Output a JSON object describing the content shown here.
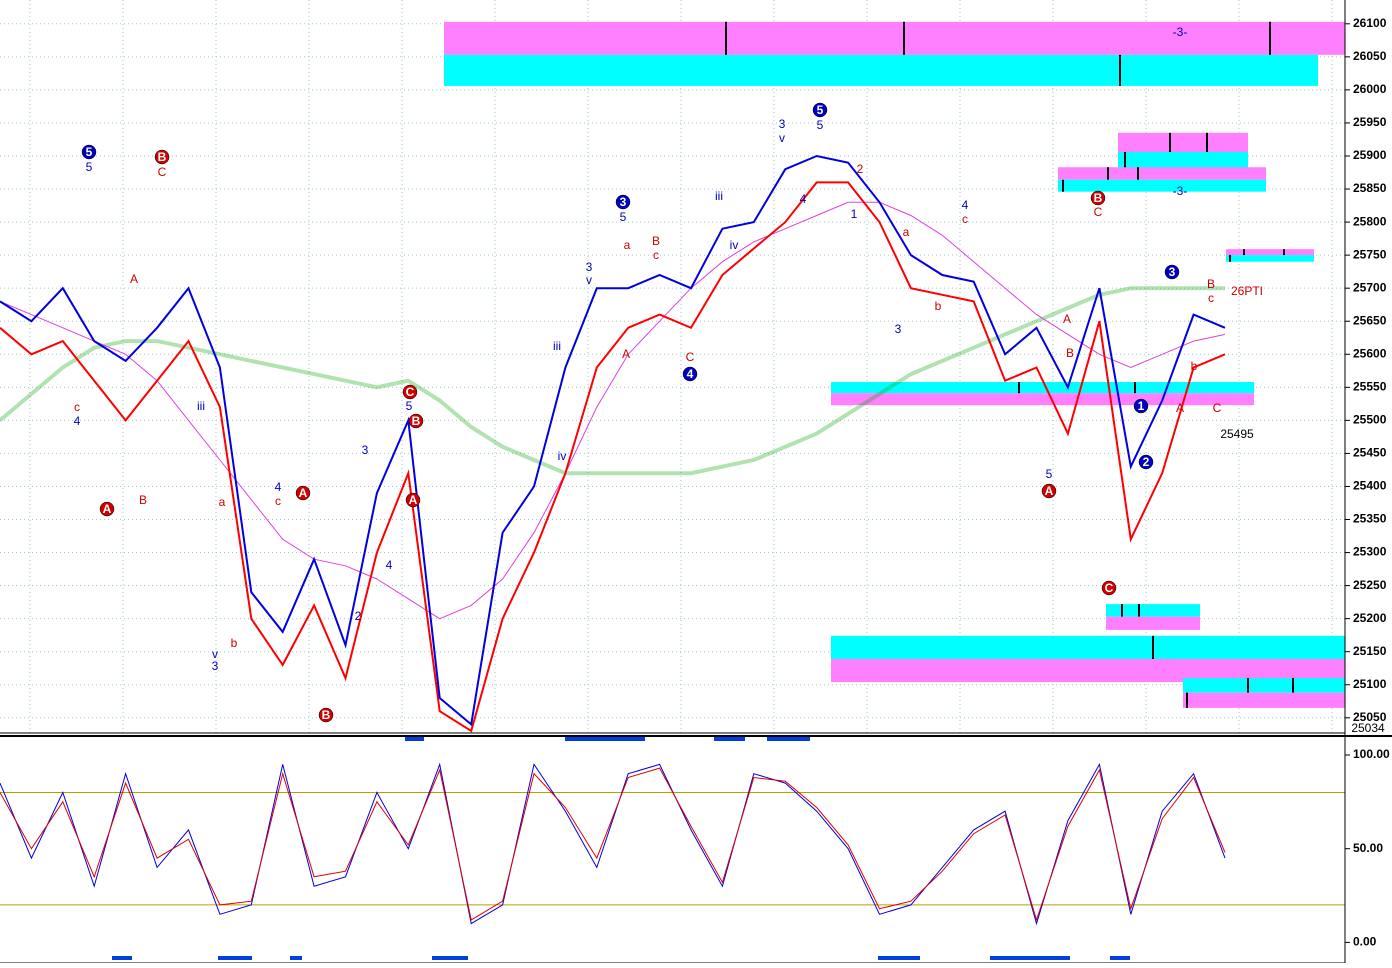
{
  "chart_data": [
    {
      "type": "line",
      "ylim": [
        25027,
        26136
      ],
      "yticks": [
        25050,
        25100,
        25150,
        25200,
        25250,
        25300,
        25350,
        25400,
        25450,
        25500,
        25550,
        25600,
        25650,
        25700,
        25750,
        25800,
        25850,
        25900,
        25950,
        26000,
        26050,
        26100
      ],
      "grid": true,
      "series": [
        {
          "color": "#00a000",
          "width": 4,
          "opacity": 0.3,
          "values": [
            25500,
            25540,
            25580,
            25610,
            25620,
            25620,
            25610,
            25600,
            25590,
            25580,
            25570,
            25560,
            25550,
            25560,
            25530,
            25490,
            25460,
            25440,
            25420,
            25420,
            25420,
            25420,
            25420,
            25430,
            25440,
            25460,
            25480,
            25510,
            25540,
            25570,
            25590,
            25610,
            25630,
            25650,
            25670,
            25690,
            25700,
            25700,
            25700,
            25700
          ]
        },
        {
          "color": "#e040e0",
          "width": 1,
          "opacity": 1,
          "values": [
            25680,
            25660,
            25640,
            25620,
            25600,
            25560,
            25500,
            25440,
            25380,
            25320,
            25290,
            25280,
            25260,
            25230,
            25200,
            25220,
            25260,
            25330,
            25420,
            25520,
            25600,
            25650,
            25700,
            25740,
            25770,
            25790,
            25810,
            25830,
            25830,
            25810,
            25780,
            25740,
            25700,
            25660,
            25630,
            25600,
            25580,
            25600,
            25620,
            25630
          ]
        },
        {
          "color": "#ff0000",
          "width": 2,
          "opacity": 1,
          "values": [
            25640,
            25600,
            25620,
            25560,
            25500,
            25560,
            25620,
            25520,
            25200,
            25130,
            25220,
            25110,
            25300,
            25420,
            25060,
            25030,
            25200,
            25300,
            25420,
            25580,
            25640,
            25660,
            25640,
            25720,
            25760,
            25800,
            25860,
            25860,
            25800,
            25700,
            25690,
            25680,
            25560,
            25580,
            25480,
            25650,
            25320,
            25420,
            25580,
            25600
          ]
        },
        {
          "color": "#0000e0",
          "width": 2,
          "opacity": 1,
          "values": [
            25680,
            25650,
            25700,
            25620,
            25590,
            25640,
            25700,
            25580,
            25240,
            25180,
            25290,
            25160,
            25390,
            25500,
            25080,
            25040,
            25330,
            25400,
            25580,
            25700,
            25700,
            25720,
            25700,
            25790,
            25800,
            25880,
            25900,
            25890,
            25830,
            25750,
            25720,
            25710,
            25600,
            25640,
            25550,
            25700,
            25430,
            25530,
            25660,
            25640
          ]
        }
      ],
      "zones": [
        {
          "top": 26103,
          "bottom": 26053,
          "color": "#ff80ff"
        },
        {
          "top": 26053,
          "bottom": 26006,
          "color": "#00ffff"
        },
        {
          "top": 25935,
          "bottom": 25906,
          "color": "#ff80ff"
        },
        {
          "top": 25906,
          "bottom": 25879,
          "color": "#00ffff"
        },
        {
          "top": 25883,
          "bottom": 25864,
          "color": "#ff80ff"
        },
        {
          "top": 25864,
          "bottom": 25846,
          "color": "#00ffff"
        },
        {
          "top": 25759,
          "bottom": 25750,
          "color": "#ff80ff"
        },
        {
          "top": 25750,
          "bottom": 25740,
          "color": "#00ffff"
        },
        {
          "top": 25558,
          "bottom": 25541,
          "color": "#00ffff"
        },
        {
          "top": 25541,
          "bottom": 25523,
          "color": "#ff80ff"
        },
        {
          "top": 25222,
          "bottom": 25203,
          "color": "#00ffff"
        },
        {
          "top": 25203,
          "bottom": 25183,
          "color": "#ff80ff"
        },
        {
          "top": 25174,
          "bottom": 25139,
          "color": "#00ffff"
        },
        {
          "top": 25139,
          "bottom": 25104,
          "color": "#ff80ff"
        },
        {
          "top": 25110,
          "bottom": 25088,
          "color": "#00ffff"
        },
        {
          "top": 25088,
          "bottom": 25065,
          "color": "#ff80ff"
        }
      ],
      "annotations": [
        {
          "text": "5",
          "color": "#0000c0",
          "circled": true
        },
        {
          "text": "B",
          "color": "#d00000",
          "circled": true
        },
        {
          "text": "A",
          "color": "#d00000",
          "circled": true
        },
        {
          "text": "C",
          "color": "#d00000",
          "circled": true
        },
        {
          "text": "B",
          "color": "#d00000",
          "circled": true
        },
        {
          "text": "A",
          "color": "#d00000",
          "circled": true
        },
        {
          "text": "B",
          "color": "#d00000",
          "circled": true
        },
        {
          "text": "A",
          "color": "#d00000",
          "circled": true
        },
        {
          "text": "3",
          "color": "#0000c0",
          "circled": true
        },
        {
          "text": "4",
          "color": "#0000c0",
          "circled": true
        },
        {
          "text": "5",
          "color": "#0000c0",
          "circled": true
        },
        {
          "text": "B",
          "color": "#d00000",
          "circled": true
        },
        {
          "text": "A",
          "color": "#d00000",
          "circled": true
        },
        {
          "text": "C",
          "color": "#d00000",
          "circled": true
        },
        {
          "text": "1",
          "color": "#0000c0",
          "circled": true
        },
        {
          "text": "2",
          "color": "#0000c0",
          "circled": true
        },
        {
          "text": "3",
          "color": "#0000c0",
          "circled": true
        },
        {
          "text": "5",
          "color": "#0000c0",
          "circled": false
        },
        {
          "text": "C",
          "color": "#d00000",
          "circled": false
        },
        {
          "text": "A",
          "color": "#d00000",
          "circled": false
        },
        {
          "text": "c",
          "color": "#d00000",
          "circled": false
        },
        {
          "text": "4",
          "color": "#0000c0",
          "circled": false
        },
        {
          "text": "B",
          "color": "#d00000",
          "circled": false
        },
        {
          "text": "iii",
          "color": "#0000c0",
          "circled": false
        },
        {
          "text": "v",
          "color": "#0000c0",
          "circled": false
        },
        {
          "text": "3",
          "color": "#0000c0",
          "circled": false
        },
        {
          "text": "b",
          "color": "#d00000",
          "circled": false
        },
        {
          "text": "a",
          "color": "#d00000",
          "circled": false
        },
        {
          "text": "4",
          "color": "#0000c0",
          "circled": false
        },
        {
          "text": "c",
          "color": "#d00000",
          "circled": false
        },
        {
          "text": "2",
          "color": "#0000c0",
          "circled": false
        },
        {
          "text": "3",
          "color": "#0000c0",
          "circled": false
        },
        {
          "text": "4",
          "color": "#0000c0",
          "circled": false
        },
        {
          "text": "5",
          "color": "#0000c0",
          "circled": false
        },
        {
          "text": "iii",
          "color": "#0000c0",
          "circled": false
        },
        {
          "text": "iv",
          "color": "#0000c0",
          "circled": false
        },
        {
          "text": "3",
          "color": "#0000c0",
          "circled": false
        },
        {
          "text": "v",
          "color": "#0000c0",
          "circled": false
        },
        {
          "text": "5",
          "color": "#0000c0",
          "circled": false
        },
        {
          "text": "a",
          "color": "#d00000",
          "circled": false
        },
        {
          "text": "A",
          "color": "#d00000",
          "circled": false
        },
        {
          "text": "B",
          "color": "#d00000",
          "circled": false
        },
        {
          "text": "c",
          "color": "#d00000",
          "circled": false
        },
        {
          "text": "C",
          "color": "#d00000",
          "circled": false
        },
        {
          "text": "iii",
          "color": "#0000c0",
          "circled": false
        },
        {
          "text": "iv",
          "color": "#0000c0",
          "circled": false
        },
        {
          "text": "3",
          "color": "#0000c0",
          "circled": false
        },
        {
          "text": "v",
          "color": "#0000c0",
          "circled": false
        },
        {
          "text": "5",
          "color": "#0000c0",
          "circled": false
        },
        {
          "text": "4",
          "color": "#0000c0",
          "circled": false
        },
        {
          "text": "2",
          "color": "#d00000",
          "circled": false
        },
        {
          "text": "1",
          "color": "#0000c0",
          "circled": false
        },
        {
          "text": "a",
          "color": "#d00000",
          "circled": false
        },
        {
          "text": "3",
          "color": "#0000c0",
          "circled": false
        },
        {
          "text": "b",
          "color": "#d00000",
          "circled": false
        },
        {
          "text": "4",
          "color": "#0000c0",
          "circled": false
        },
        {
          "text": "c",
          "color": "#d00000",
          "circled": false
        },
        {
          "text": "C",
          "color": "#d00000",
          "circled": false
        },
        {
          "text": "5",
          "color": "#0000c0",
          "circled": false
        },
        {
          "text": "A",
          "color": "#d00000",
          "circled": false
        },
        {
          "text": "B",
          "color": "#d00000",
          "circled": false
        },
        {
          "text": "B",
          "color": "#d00000",
          "circled": false
        },
        {
          "text": "c",
          "color": "#d00000",
          "circled": false
        },
        {
          "text": "b",
          "color": "#d00000",
          "circled": false
        },
        {
          "text": "A",
          "color": "#d00000",
          "circled": false
        },
        {
          "text": "C",
          "color": "#d00000",
          "circled": false
        },
        {
          "text": "25495",
          "color": "#000000",
          "circled": false
        },
        {
          "text": "26PTI",
          "color": "#d00000",
          "circled": false
        },
        {
          "text": "-3-",
          "color": "#0000c0",
          "circled": false
        },
        {
          "text": "-3-",
          "color": "#0000c0",
          "circled": false
        },
        {
          "text": "25034",
          "color": "#000000",
          "circled": false
        }
      ]
    },
    {
      "type": "oscillator",
      "ylim": [
        -11,
        108
      ],
      "yticks": [
        {
          "value": 100,
          "label": "100.00"
        },
        {
          "value": 50,
          "label": "50.00"
        },
        {
          "value": 0,
          "label": "0.00"
        }
      ],
      "levels": [
        80,
        20
      ],
      "series": [
        {
          "color": "#0000e0",
          "values": [
            85,
            45,
            80,
            30,
            90,
            40,
            60,
            15,
            20,
            95,
            30,
            35,
            80,
            50,
            95,
            10,
            20,
            95,
            70,
            40,
            90,
            95,
            60,
            30,
            90,
            85,
            70,
            50,
            15,
            20,
            40,
            60,
            70,
            10,
            65,
            95,
            15,
            70,
            90,
            45
          ]
        },
        {
          "color": "#e00000",
          "values": [
            80,
            50,
            75,
            35,
            85,
            45,
            55,
            20,
            22,
            90,
            35,
            38,
            75,
            52,
            92,
            12,
            22,
            90,
            72,
            45,
            88,
            93,
            62,
            32,
            88,
            86,
            72,
            52,
            18,
            22,
            38,
            58,
            68,
            12,
            62,
            92,
            18,
            66,
            88,
            48
          ]
        }
      ]
    }
  ]
}
